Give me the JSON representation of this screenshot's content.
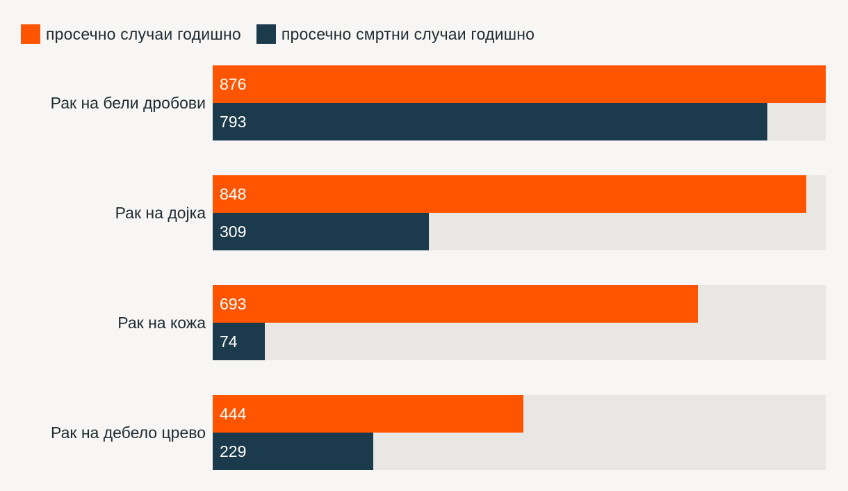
{
  "legend": {
    "cases_label": "просечно случаи годишно",
    "deaths_label": "просечно смртни случаи годишно"
  },
  "colors": {
    "cases": "#ff5500",
    "deaths": "#1b3a4b",
    "track": "#e9e7e4"
  },
  "chart_data": {
    "type": "bar",
    "orientation": "horizontal",
    "categories": [
      "Рак на бели дробови",
      "Рак на дојка",
      "Рак на кожа",
      "Рак на дебело црево"
    ],
    "series": [
      {
        "name": "просечно случаи годишно",
        "values": [
          876,
          848,
          693,
          444
        ]
      },
      {
        "name": "просечно смртни случаи годишно",
        "values": [
          793,
          309,
          74,
          229
        ]
      }
    ],
    "xlim": [
      0,
      876
    ],
    "legend_position": "top-left",
    "title": "",
    "xlabel": "",
    "ylabel": ""
  }
}
